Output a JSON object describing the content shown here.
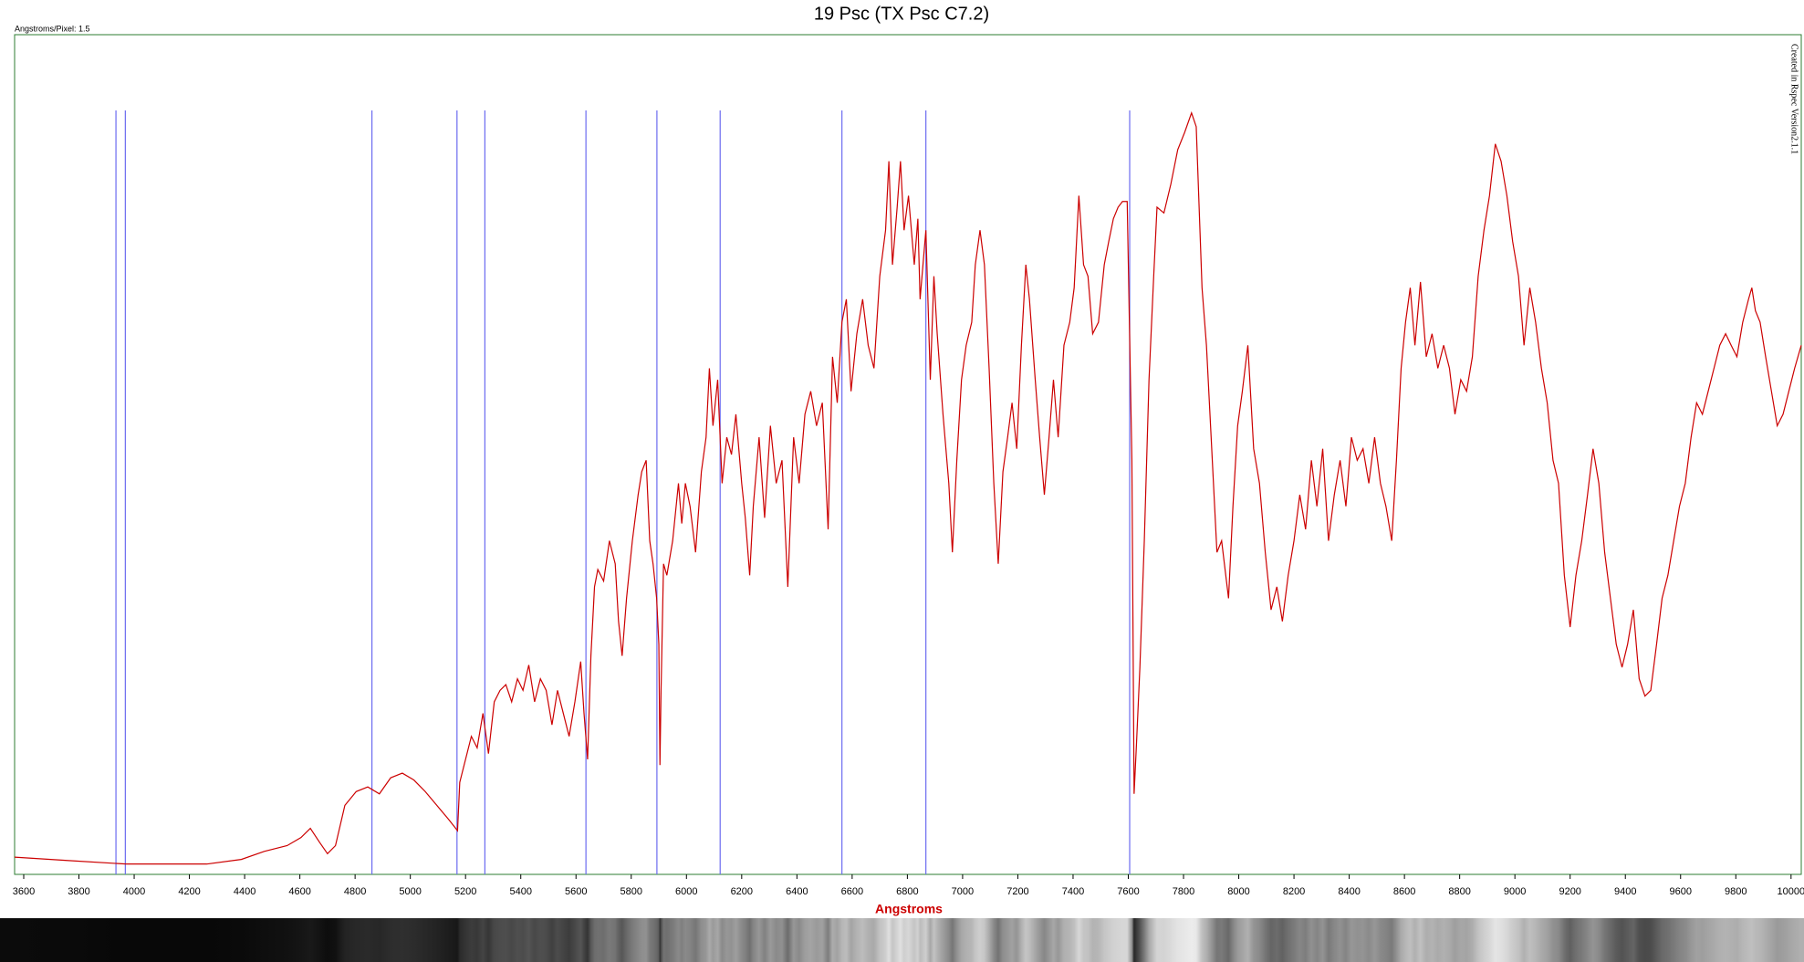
{
  "chart_data": {
    "type": "line",
    "title": "19 Psc (TX Psc C7.2)",
    "subtitle": "Angstroms/Pixel: 1.5",
    "annotation": "Created in Rspec Version2.1.1",
    "x_label": "Angstroms",
    "xlim": [
      3567,
      10037
    ],
    "xticks": [
      3600,
      3800,
      4000,
      4200,
      4400,
      4600,
      4800,
      5000,
      5200,
      5400,
      5600,
      5800,
      6000,
      6200,
      6400,
      6600,
      6800,
      7000,
      7200,
      7400,
      7600,
      7800,
      8000,
      8200,
      8400,
      8600,
      8800,
      9000,
      9200,
      9400,
      9600,
      9800,
      10000
    ],
    "ylim": [
      0,
      730
    ],
    "grid": false,
    "reference_lines": {
      "color": "#6b6bf0",
      "values": [
        3934,
        3968,
        4861,
        5169,
        5270,
        5636,
        5893,
        6122,
        6563,
        6867,
        7605
      ]
    },
    "x": [
      3567,
      3763,
      3971,
      4263,
      4388,
      4471,
      4554,
      4604,
      4638,
      4671,
      4700,
      4729,
      4763,
      4804,
      4846,
      4888,
      4929,
      4971,
      5013,
      5054,
      5096,
      5138,
      5171,
      5179,
      5200,
      5221,
      5242,
      5263,
      5283,
      5304,
      5325,
      5346,
      5367,
      5388,
      5408,
      5429,
      5450,
      5471,
      5492,
      5513,
      5533,
      5554,
      5575,
      5596,
      5617,
      5629,
      5642,
      5654,
      5667,
      5679,
      5700,
      5721,
      5742,
      5754,
      5767,
      5783,
      5804,
      5825,
      5838,
      5854,
      5867,
      5879,
      5892,
      5900,
      5904,
      5908,
      5917,
      5929,
      5950,
      5971,
      5983,
      5996,
      6013,
      6033,
      6054,
      6071,
      6083,
      6096,
      6113,
      6129,
      6146,
      6163,
      6179,
      6200,
      6213,
      6229,
      6242,
      6263,
      6283,
      6304,
      6325,
      6346,
      6367,
      6388,
      6408,
      6429,
      6450,
      6471,
      6492,
      6513,
      6529,
      6546,
      6563,
      6579,
      6596,
      6617,
      6638,
      6658,
      6679,
      6700,
      6721,
      6733,
      6746,
      6763,
      6775,
      6788,
      6804,
      6825,
      6838,
      6846,
      6867,
      6883,
      6896,
      6908,
      6929,
      6950,
      6963,
      6979,
      6996,
      7013,
      7033,
      7046,
      7063,
      7079,
      7096,
      7113,
      7129,
      7146,
      7163,
      7179,
      7196,
      7213,
      7229,
      7242,
      7263,
      7279,
      7296,
      7313,
      7329,
      7346,
      7367,
      7388,
      7404,
      7421,
      7438,
      7454,
      7471,
      7492,
      7513,
      7529,
      7546,
      7563,
      7579,
      7596,
      7613,
      7621,
      7629,
      7642,
      7658,
      7675,
      7692,
      7704,
      7729,
      7754,
      7779,
      7804,
      7829,
      7846,
      7867,
      7883,
      7900,
      7921,
      7938,
      7963,
      7979,
      7996,
      8013,
      8033,
      8054,
      8075,
      8096,
      8117,
      8138,
      8158,
      8179,
      8200,
      8221,
      8242,
      8263,
      8283,
      8304,
      8325,
      8346,
      8367,
      8388,
      8408,
      8429,
      8450,
      8471,
      8492,
      8513,
      8533,
      8554,
      8571,
      8588,
      8604,
      8621,
      8638,
      8658,
      8679,
      8700,
      8721,
      8742,
      8763,
      8783,
      8804,
      8825,
      8846,
      8867,
      8888,
      8908,
      8929,
      8950,
      8971,
      8992,
      9013,
      9033,
      9054,
      9075,
      9096,
      9117,
      9138,
      9158,
      9179,
      9200,
      9221,
      9242,
      9263,
      9283,
      9304,
      9325,
      9346,
      9367,
      9388,
      9408,
      9429,
      9450,
      9471,
      9492,
      9513,
      9533,
      9554,
      9575,
      9596,
      9617,
      9638,
      9658,
      9679,
      9700,
      9721,
      9742,
      9763,
      9783,
      9804,
      9825,
      9846,
      9858,
      9871,
      9888,
      9908,
      9929,
      9950,
      9971,
      9992,
      10013,
      10037
    ],
    "series": [
      {
        "color": "#cc0000",
        "values": [
          15,
          12,
          9,
          9,
          13,
          20,
          25,
          32,
          40,
          28,
          18,
          25,
          60,
          72,
          76,
          70,
          84,
          88,
          82,
          72,
          60,
          48,
          38,
          80,
          100,
          120,
          110,
          140,
          105,
          150,
          160,
          165,
          150,
          170,
          160,
          182,
          150,
          170,
          160,
          130,
          160,
          140,
          120,
          150,
          185,
          140,
          100,
          190,
          250,
          265,
          255,
          290,
          270,
          220,
          190,
          240,
          290,
          330,
          350,
          360,
          290,
          270,
          240,
          200,
          95,
          160,
          270,
          260,
          290,
          340,
          305,
          340,
          320,
          280,
          350,
          380,
          440,
          390,
          430,
          340,
          380,
          365,
          400,
          340,
          310,
          260,
          320,
          380,
          310,
          390,
          340,
          360,
          250,
          380,
          340,
          400,
          420,
          390,
          410,
          300,
          450,
          410,
          480,
          500,
          420,
          470,
          500,
          460,
          440,
          520,
          560,
          620,
          530,
          580,
          620,
          560,
          590,
          530,
          570,
          500,
          560,
          430,
          520,
          470,
          400,
          340,
          280,
          360,
          430,
          460,
          480,
          530,
          560,
          530,
          440,
          340,
          270,
          350,
          380,
          410,
          370,
          460,
          530,
          500,
          430,
          380,
          330,
          380,
          430,
          380,
          460,
          480,
          510,
          590,
          530,
          520,
          470,
          480,
          530,
          550,
          570,
          580,
          585,
          585,
          360,
          70,
          110,
          180,
          290,
          430,
          520,
          580,
          575,
          600,
          630,
          645,
          662,
          650,
          510,
          460,
          380,
          280,
          290,
          240,
          320,
          390,
          420,
          460,
          370,
          340,
          280,
          230,
          250,
          220,
          260,
          290,
          330,
          300,
          360,
          320,
          370,
          290,
          330,
          360,
          320,
          380,
          360,
          370,
          340,
          380,
          340,
          320,
          290,
          360,
          440,
          480,
          510,
          460,
          515,
          450,
          470,
          440,
          460,
          440,
          400,
          430,
          420,
          450,
          520,
          560,
          590,
          635,
          620,
          590,
          550,
          520,
          460,
          510,
          480,
          440,
          410,
          360,
          340,
          260,
          215,
          260,
          290,
          330,
          370,
          340,
          280,
          240,
          200,
          180,
          200,
          230,
          170,
          155,
          160,
          200,
          240,
          260,
          290,
          320,
          340,
          380,
          410,
          400,
          420,
          440,
          460,
          470,
          460,
          450,
          480,
          500,
          510,
          490,
          480,
          450,
          420,
          390,
          400,
          420,
          440,
          460
        ]
      }
    ]
  }
}
